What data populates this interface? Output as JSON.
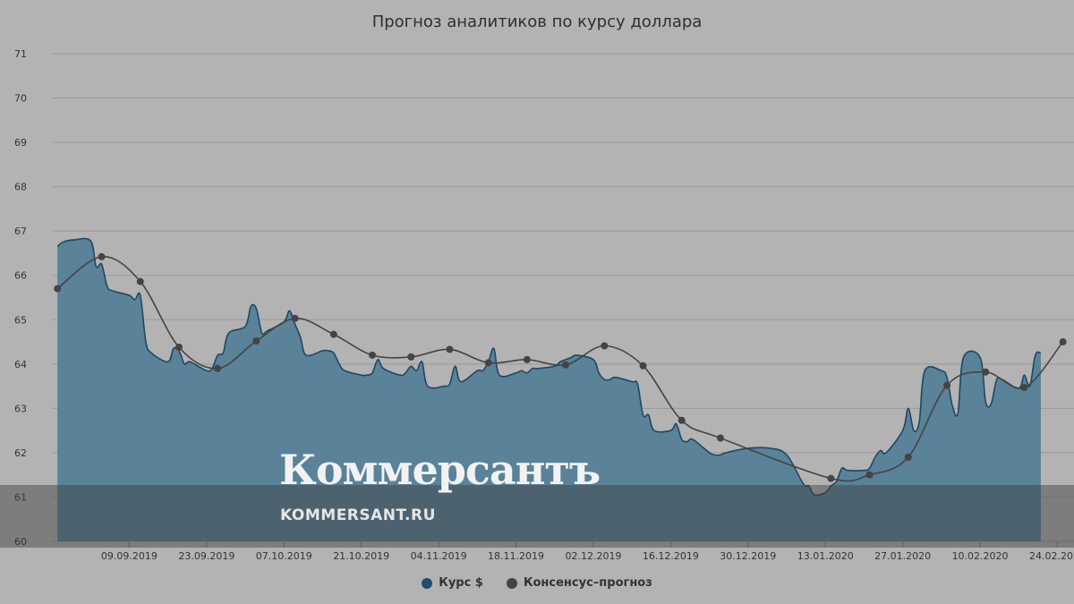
{
  "chart_data": {
    "type": "area",
    "title": "Прогноз аналитиков по курсу доллара",
    "ylim": [
      60,
      71
    ],
    "yticks": [
      "60",
      "61",
      "62",
      "63",
      "64",
      "65",
      "66",
      "67",
      "68",
      "69",
      "70",
      "71"
    ],
    "xticks": [
      "09.09.2019",
      "23.09.2019",
      "07.10.2019",
      "21.10.2019",
      "04.11.2019",
      "18.11.2019",
      "02.12.2019",
      "16.12.2019",
      "30.12.2019",
      "13.01.2020",
      "27.01.2020",
      "10.02.2020",
      "24.02.2020"
    ],
    "grid": true,
    "legend_position": "bottom",
    "series": [
      {
        "name": "Курс $",
        "style": "area",
        "color": "#1e4e6e",
        "points": [
          [
            "2019-08-27",
            66.65
          ],
          [
            "2019-08-28",
            66.75
          ],
          [
            "2019-08-30",
            66.8
          ],
          [
            "2019-09-02",
            66.78
          ],
          [
            "2019-09-03",
            66.2
          ],
          [
            "2019-09-04",
            66.25
          ],
          [
            "2019-09-05",
            65.75
          ],
          [
            "2019-09-06",
            65.65
          ],
          [
            "2019-09-09",
            65.55
          ],
          [
            "2019-09-10",
            65.45
          ],
          [
            "2019-09-11",
            65.55
          ],
          [
            "2019-09-12",
            64.5
          ],
          [
            "2019-09-13",
            64.25
          ],
          [
            "2019-09-16",
            64.05
          ],
          [
            "2019-09-17",
            64.35
          ],
          [
            "2019-09-18",
            64.3
          ],
          [
            "2019-09-19",
            64.0
          ],
          [
            "2019-09-20",
            64.05
          ],
          [
            "2019-09-23",
            63.85
          ],
          [
            "2019-09-24",
            63.9
          ],
          [
            "2019-09-25",
            64.2
          ],
          [
            "2019-09-26",
            64.25
          ],
          [
            "2019-09-27",
            64.7
          ],
          [
            "2019-09-30",
            64.85
          ],
          [
            "2019-10-01",
            65.3
          ],
          [
            "2019-10-02",
            65.25
          ],
          [
            "2019-10-03",
            64.7
          ],
          [
            "2019-10-04",
            64.75
          ],
          [
            "2019-10-07",
            64.95
          ],
          [
            "2019-10-08",
            65.2
          ],
          [
            "2019-10-09",
            64.9
          ],
          [
            "2019-10-10",
            64.6
          ],
          [
            "2019-10-11",
            64.2
          ],
          [
            "2019-10-14",
            64.3
          ],
          [
            "2019-10-15",
            64.3
          ],
          [
            "2019-10-16",
            64.25
          ],
          [
            "2019-10-17",
            64.0
          ],
          [
            "2019-10-18",
            63.85
          ],
          [
            "2019-10-21",
            63.75
          ],
          [
            "2019-10-22",
            63.75
          ],
          [
            "2019-10-23",
            63.8
          ],
          [
            "2019-10-24",
            64.1
          ],
          [
            "2019-10-25",
            63.9
          ],
          [
            "2019-10-28",
            63.75
          ],
          [
            "2019-10-29",
            63.8
          ],
          [
            "2019-10-30",
            63.95
          ],
          [
            "2019-10-31",
            63.85
          ],
          [
            "2019-11-01",
            64.05
          ],
          [
            "2019-11-02",
            63.5
          ],
          [
            "2019-11-05",
            63.5
          ],
          [
            "2019-11-06",
            63.55
          ],
          [
            "2019-11-07",
            63.95
          ],
          [
            "2019-11-08",
            63.6
          ],
          [
            "2019-11-11",
            63.85
          ],
          [
            "2019-11-12",
            63.85
          ],
          [
            "2019-11-13",
            64.05
          ],
          [
            "2019-11-14",
            64.35
          ],
          [
            "2019-11-15",
            63.75
          ],
          [
            "2019-11-18",
            63.8
          ],
          [
            "2019-11-19",
            63.85
          ],
          [
            "2019-11-20",
            63.8
          ],
          [
            "2019-11-21",
            63.9
          ],
          [
            "2019-11-22",
            63.9
          ],
          [
            "2019-11-25",
            63.95
          ],
          [
            "2019-11-26",
            64.05
          ],
          [
            "2019-11-27",
            64.1
          ],
          [
            "2019-11-28",
            64.15
          ],
          [
            "2019-11-29",
            64.2
          ],
          [
            "2019-12-02",
            64.1
          ],
          [
            "2019-12-03",
            63.8
          ],
          [
            "2019-12-04",
            63.65
          ],
          [
            "2019-12-05",
            63.65
          ],
          [
            "2019-12-06",
            63.7
          ],
          [
            "2019-12-09",
            63.6
          ],
          [
            "2019-12-10",
            63.55
          ],
          [
            "2019-12-11",
            62.85
          ],
          [
            "2019-12-12",
            62.85
          ],
          [
            "2019-12-13",
            62.5
          ],
          [
            "2019-12-16",
            62.5
          ],
          [
            "2019-12-17",
            62.65
          ],
          [
            "2019-12-18",
            62.3
          ],
          [
            "2019-12-19",
            62.25
          ],
          [
            "2019-12-20",
            62.3
          ],
          [
            "2019-12-23",
            62.0
          ],
          [
            "2019-12-24",
            61.95
          ],
          [
            "2019-12-25",
            61.95
          ],
          [
            "2019-12-26",
            62.0
          ],
          [
            "2019-12-30",
            62.1
          ],
          [
            "2020-01-03",
            62.1
          ],
          [
            "2020-01-06",
            61.95
          ],
          [
            "2020-01-09",
            61.3
          ],
          [
            "2020-01-10",
            61.25
          ],
          [
            "2020-01-11",
            61.05
          ],
          [
            "2020-01-13",
            61.1
          ],
          [
            "2020-01-14",
            61.25
          ],
          [
            "2020-01-15",
            61.35
          ],
          [
            "2020-01-16",
            61.65
          ],
          [
            "2020-01-17",
            61.6
          ],
          [
            "2020-01-20",
            61.6
          ],
          [
            "2020-01-21",
            61.65
          ],
          [
            "2020-01-22",
            61.9
          ],
          [
            "2020-01-23",
            62.05
          ],
          [
            "2020-01-24",
            62.0
          ],
          [
            "2020-01-27",
            62.5
          ],
          [
            "2020-01-28",
            63.0
          ],
          [
            "2020-01-29",
            62.5
          ],
          [
            "2020-01-30",
            62.7
          ],
          [
            "2020-01-31",
            63.85
          ],
          [
            "2020-02-03",
            63.85
          ],
          [
            "2020-02-04",
            63.7
          ],
          [
            "2020-02-05",
            63.05
          ],
          [
            "2020-02-06",
            62.9
          ],
          [
            "2020-02-07",
            64.15
          ],
          [
            "2020-02-10",
            64.15
          ],
          [
            "2020-02-11",
            63.15
          ],
          [
            "2020-02-12",
            63.1
          ],
          [
            "2020-02-13",
            63.65
          ],
          [
            "2020-02-14",
            63.65
          ],
          [
            "2020-02-17",
            63.45
          ],
          [
            "2020-02-18",
            63.75
          ],
          [
            "2020-02-19",
            63.5
          ],
          [
            "2020-02-20",
            64.2
          ],
          [
            "2020-02-21",
            64.25
          ]
        ]
      },
      {
        "name": "Консенсус–прогноз",
        "style": "line",
        "color": "#444444",
        "points": [
          [
            "2019-08-27",
            65.7
          ],
          [
            "2019-09-04",
            66.42
          ],
          [
            "2019-09-11",
            65.86
          ],
          [
            "2019-09-18",
            64.38
          ],
          [
            "2019-09-25",
            63.9
          ],
          [
            "2019-10-02",
            64.52
          ],
          [
            "2019-10-09",
            65.03
          ],
          [
            "2019-10-16",
            64.67
          ],
          [
            "2019-10-23",
            64.2
          ],
          [
            "2019-10-30",
            64.16
          ],
          [
            "2019-11-06",
            64.33
          ],
          [
            "2019-11-13",
            64.03
          ],
          [
            "2019-11-20",
            64.1
          ],
          [
            "2019-11-27",
            63.98
          ],
          [
            "2019-12-04",
            64.41
          ],
          [
            "2019-12-11",
            63.96
          ],
          [
            "2019-12-18",
            62.73
          ],
          [
            "2019-12-25",
            62.33
          ],
          [
            "2020-01-14",
            61.42
          ],
          [
            "2020-01-21",
            61.5
          ],
          [
            "2020-01-28",
            61.9
          ],
          [
            "2020-02-04",
            63.52
          ],
          [
            "2020-02-11",
            63.82
          ],
          [
            "2020-02-18",
            63.47
          ],
          [
            "2020-02-25",
            64.5
          ]
        ]
      }
    ]
  },
  "watermark": {
    "logo": "Коммерсантъ",
    "url": "KOMMERSANT.RU"
  },
  "colors": {
    "background": "#b3b3b3",
    "area_fill": "#5a8298",
    "area_stroke": "#1b4966",
    "consensus": "#444444",
    "grid": "#999999"
  }
}
